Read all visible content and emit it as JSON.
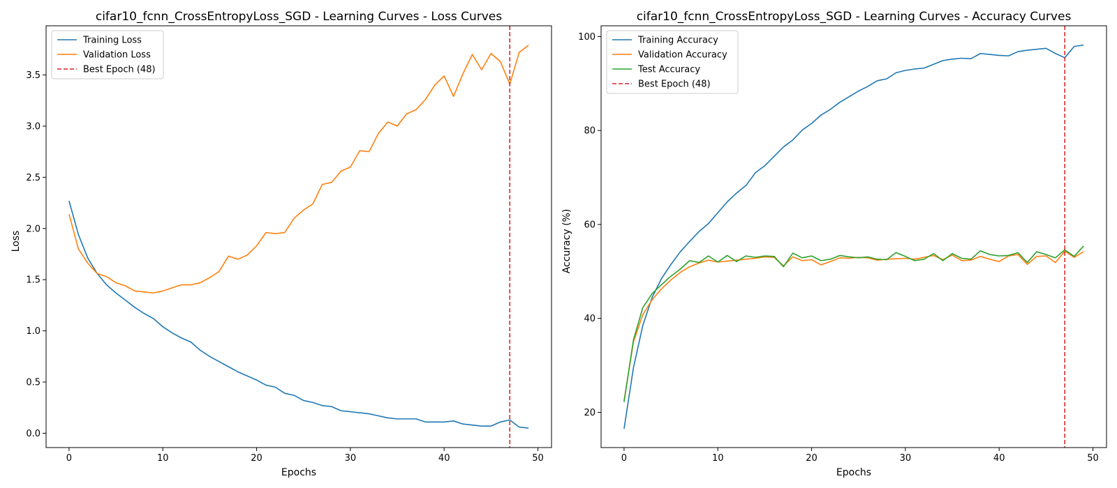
{
  "chart_data": [
    {
      "type": "line",
      "title": "cifar10_fcnn_CrossEntropyLoss_SGD - Learning Curves - Loss Curves",
      "xlabel": "Epochs",
      "ylabel": "Loss",
      "xlim": [
        -2.45,
        51.45
      ],
      "ylim": [
        -0.14,
        3.98
      ],
      "xticks": [
        0,
        10,
        20,
        30,
        40,
        50
      ],
      "yticks": [
        0.0,
        0.5,
        1.0,
        1.5,
        2.0,
        2.5,
        3.0,
        3.5
      ],
      "ytick_decimals": 1,
      "legend_position": "top-left",
      "best_epoch": {
        "label": "Best Epoch (48)",
        "x": 47,
        "color": "#d62728"
      },
      "series": [
        {
          "name": "Training Loss",
          "color": "#1f77b4",
          "values": [
            2.27,
            1.94,
            1.71,
            1.56,
            1.45,
            1.37,
            1.3,
            1.23,
            1.17,
            1.12,
            1.04,
            0.98,
            0.93,
            0.89,
            0.81,
            0.75,
            0.7,
            0.65,
            0.6,
            0.56,
            0.52,
            0.47,
            0.45,
            0.39,
            0.37,
            0.32,
            0.3,
            0.27,
            0.26,
            0.22,
            0.21,
            0.2,
            0.19,
            0.17,
            0.15,
            0.14,
            0.14,
            0.14,
            0.11,
            0.11,
            0.11,
            0.12,
            0.09,
            0.08,
            0.07,
            0.07,
            0.11,
            0.13,
            0.06,
            0.05
          ]
        },
        {
          "name": "Validation Loss",
          "color": "#ff7f0e",
          "values": [
            2.14,
            1.8,
            1.66,
            1.56,
            1.53,
            1.47,
            1.44,
            1.39,
            1.38,
            1.37,
            1.39,
            1.42,
            1.45,
            1.45,
            1.47,
            1.52,
            1.58,
            1.73,
            1.7,
            1.74,
            1.83,
            1.96,
            1.95,
            1.96,
            2.1,
            2.18,
            2.24,
            2.43,
            2.45,
            2.56,
            2.6,
            2.76,
            2.75,
            2.93,
            3.04,
            3.0,
            3.12,
            3.16,
            3.26,
            3.4,
            3.49,
            3.29,
            3.51,
            3.7,
            3.55,
            3.71,
            3.63,
            3.41,
            3.72,
            3.79
          ]
        }
      ]
    },
    {
      "type": "line",
      "title": "cifar10_fcnn_CrossEntropyLoss_SGD - Learning Curves - Accuracy Curves",
      "xlabel": "Epochs",
      "ylabel": "Accuracy (%)",
      "xlim": [
        -2.45,
        51.45
      ],
      "ylim": [
        12.5,
        102.3
      ],
      "xticks": [
        0,
        10,
        20,
        30,
        40,
        50
      ],
      "yticks": [
        20,
        40,
        60,
        80,
        100
      ],
      "ytick_decimals": 0,
      "legend_position": "top-left",
      "best_epoch": {
        "label": "Best Epoch (48)",
        "x": 47,
        "color": "#d62728"
      },
      "series": [
        {
          "name": "Training Accuracy",
          "color": "#1f77b4",
          "values": [
            16.5,
            29.5,
            38.5,
            44.5,
            48.5,
            51.5,
            54.2,
            56.4,
            58.5,
            60.2,
            62.5,
            64.8,
            66.7,
            68.3,
            71.0,
            72.5,
            74.5,
            76.5,
            78.0,
            80.1,
            81.5,
            83.3,
            84.5,
            86.0,
            87.2,
            88.4,
            89.4,
            90.6,
            91.0,
            92.3,
            92.8,
            93.1,
            93.3,
            94.1,
            94.9,
            95.2,
            95.4,
            95.3,
            96.4,
            96.2,
            96.0,
            95.9,
            96.8,
            97.1,
            97.3,
            97.5,
            96.4,
            95.5,
            97.9,
            98.2
          ]
        },
        {
          "name": "Validation Accuracy",
          "color": "#ff7f0e",
          "values": [
            22.5,
            35.0,
            40.8,
            44.0,
            46.3,
            48.2,
            49.8,
            51.0,
            51.8,
            52.4,
            52.0,
            52.2,
            52.4,
            52.6,
            52.8,
            53.1,
            53.0,
            51.2,
            53.1,
            52.3,
            52.5,
            51.4,
            52.1,
            52.9,
            52.8,
            53.0,
            52.9,
            52.4,
            52.6,
            52.7,
            52.8,
            52.6,
            53.0,
            53.4,
            52.5,
            53.5,
            52.3,
            52.4,
            53.2,
            52.6,
            52.1,
            53.3,
            53.6,
            51.5,
            53.2,
            53.3,
            51.9,
            54.3,
            53.0,
            54.2
          ]
        },
        {
          "name": "Test Accuracy",
          "color": "#2ca02c",
          "values": [
            22.2,
            35.4,
            42.3,
            45.3,
            47.2,
            49.0,
            50.5,
            52.3,
            51.9,
            53.3,
            52.0,
            53.4,
            52.1,
            53.3,
            53.0,
            53.3,
            53.2,
            51.0,
            53.9,
            52.9,
            53.3,
            52.3,
            52.6,
            53.4,
            53.1,
            52.9,
            53.1,
            52.6,
            52.5,
            54.0,
            53.2,
            52.3,
            52.6,
            53.8,
            52.3,
            53.8,
            52.8,
            52.6,
            54.4,
            53.6,
            53.3,
            53.4,
            54.0,
            51.9,
            54.2,
            53.6,
            52.9,
            54.6,
            53.2,
            55.4
          ]
        }
      ]
    }
  ]
}
